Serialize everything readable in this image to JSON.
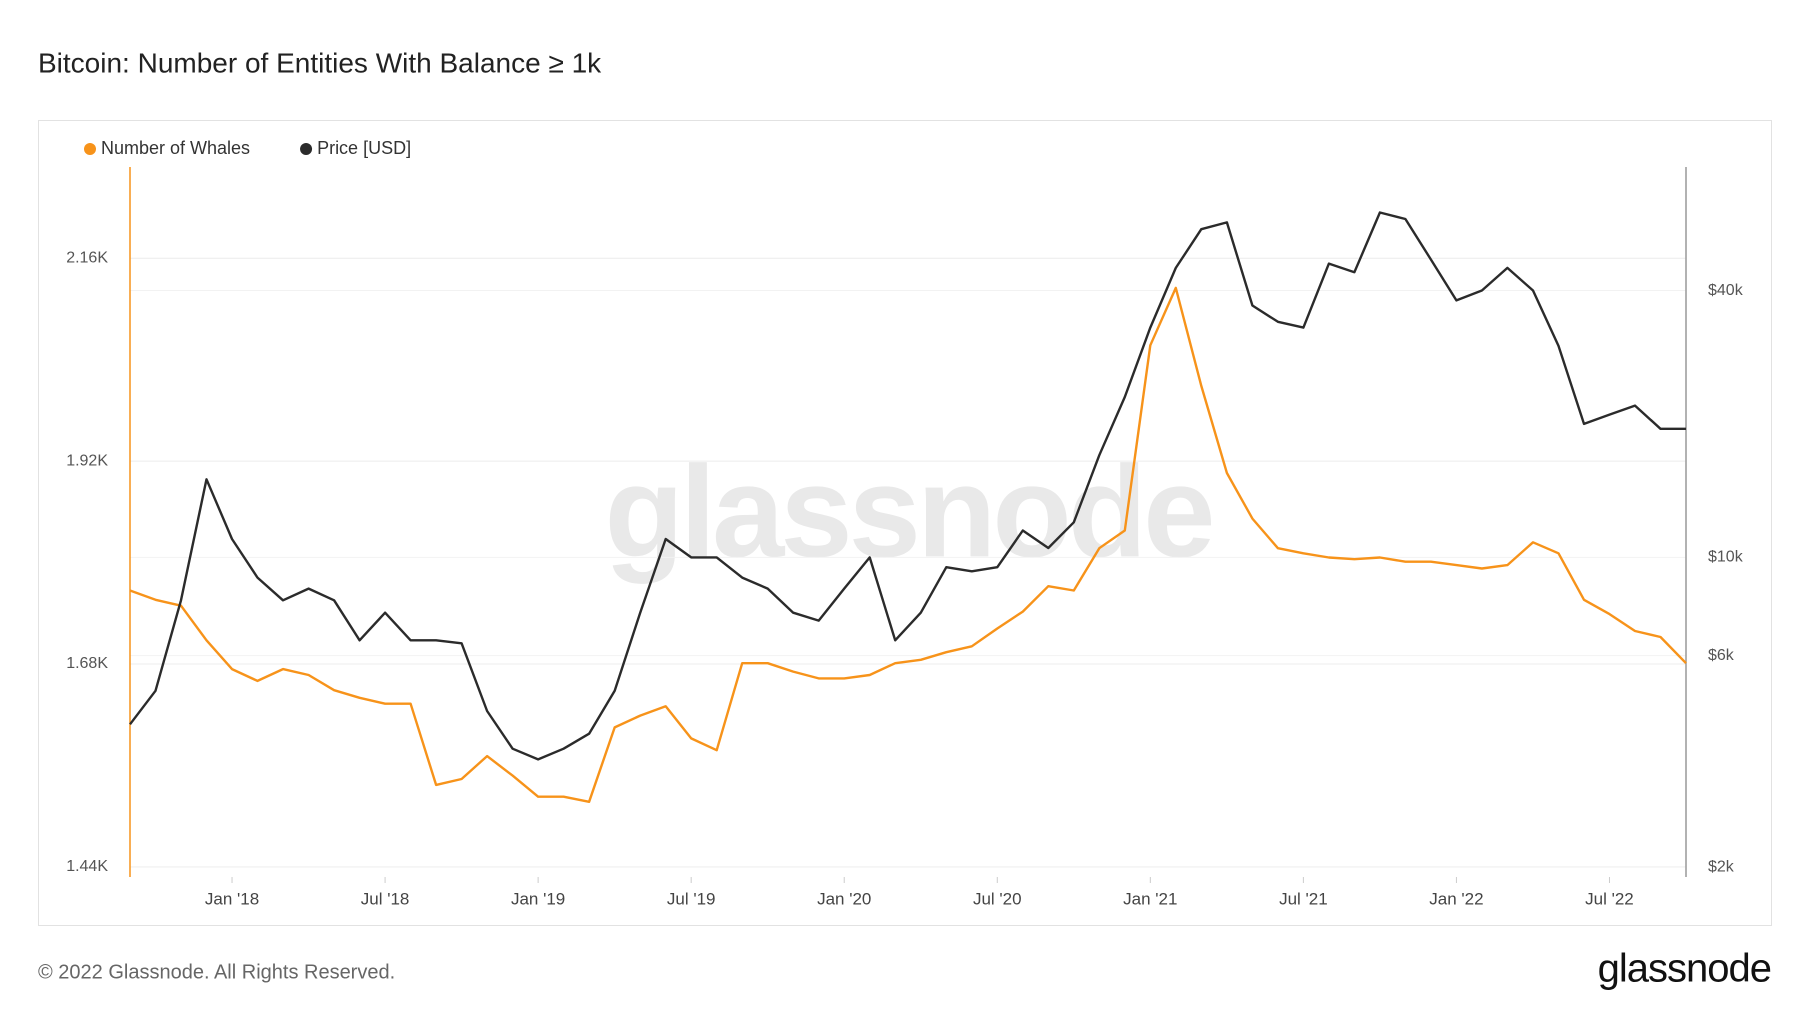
{
  "chart_data": {
    "type": "line",
    "title": "Bitcoin: Number of Entities With Balance ≥ 1k",
    "x": [
      "2017-09",
      "2017-10",
      "2017-11",
      "2017-12",
      "2018-01",
      "2018-02",
      "2018-03",
      "2018-04",
      "2018-05",
      "2018-06",
      "2018-07",
      "2018-08",
      "2018-09",
      "2018-10",
      "2018-11",
      "2018-12",
      "2019-01",
      "2019-02",
      "2019-03",
      "2019-04",
      "2019-05",
      "2019-06",
      "2019-07",
      "2019-08",
      "2019-09",
      "2019-10",
      "2019-11",
      "2019-12",
      "2020-01",
      "2020-02",
      "2020-03",
      "2020-04",
      "2020-05",
      "2020-06",
      "2020-07",
      "2020-08",
      "2020-09",
      "2020-10",
      "2020-11",
      "2020-12",
      "2021-01",
      "2021-02",
      "2021-03",
      "2021-04",
      "2021-05",
      "2021-06",
      "2021-07",
      "2021-08",
      "2021-09",
      "2021-10",
      "2021-11",
      "2021-12",
      "2022-01",
      "2022-02",
      "2022-03",
      "2022-04",
      "2022-05",
      "2022-06",
      "2022-07",
      "2022-08",
      "2022-09",
      "2022-10"
    ],
    "series": [
      {
        "name": "Number of Whales",
        "color": "#f7931a",
        "axis": "y",
        "values": [
          1767,
          1756,
          1749,
          1708,
          1674,
          1660,
          1674,
          1667,
          1649,
          1640,
          1633,
          1633,
          1537,
          1544,
          1571,
          1548,
          1523,
          1523,
          1517,
          1605,
          1619,
          1630,
          1592,
          1578,
          1681,
          1681,
          1671,
          1663,
          1663,
          1667,
          1681,
          1685,
          1694,
          1701,
          1722,
          1742,
          1772,
          1767,
          1817,
          1838,
          2057,
          2125,
          2009,
          1906,
          1852,
          1817,
          1811,
          1806,
          1804,
          1806,
          1801,
          1801,
          1797,
          1793,
          1797,
          1824,
          1811,
          1756,
          1739,
          1719,
          1712,
          1681
        ]
      },
      {
        "name": "Price [USD]",
        "color": "#2b2b2b",
        "axis": "y2",
        "values": [
          4200,
          5000,
          8000,
          15000,
          11000,
          9000,
          8000,
          8500,
          8000,
          6500,
          7500,
          6500,
          6500,
          6400,
          4500,
          3700,
          3500,
          3700,
          4000,
          5000,
          7500,
          11000,
          10000,
          10000,
          9000,
          8500,
          7500,
          7200,
          8500,
          10000,
          6500,
          7500,
          9500,
          9300,
          9500,
          11500,
          10500,
          12000,
          17000,
          23000,
          33000,
          45000,
          55000,
          57000,
          37000,
          34000,
          33000,
          46000,
          44000,
          60000,
          58000,
          47000,
          38000,
          40000,
          45000,
          40000,
          30000,
          20000,
          21000,
          22000,
          19500,
          19500
        ]
      }
    ],
    "xlim": [
      "2017-09",
      "2022-10"
    ],
    "xticks": [
      {
        "value": "2018-01",
        "label": "Jan '18"
      },
      {
        "value": "2018-07",
        "label": "Jul '18"
      },
      {
        "value": "2019-01",
        "label": "Jan '19"
      },
      {
        "value": "2019-07",
        "label": "Jul '19"
      },
      {
        "value": "2020-01",
        "label": "Jan '20"
      },
      {
        "value": "2020-07",
        "label": "Jul '20"
      },
      {
        "value": "2021-01",
        "label": "Jan '21"
      },
      {
        "value": "2021-07",
        "label": "Jul '21"
      },
      {
        "value": "2022-01",
        "label": "Jan '22"
      },
      {
        "value": "2022-07",
        "label": "Jul '22"
      }
    ],
    "ylim": [
      1428,
      2268
    ],
    "yticks": [
      {
        "value": 1440,
        "label": "1.44K"
      },
      {
        "value": 1680,
        "label": "1.68K"
      },
      {
        "value": 1920,
        "label": "1.92K"
      },
      {
        "value": 2160,
        "label": "2.16K"
      }
    ],
    "y2lim": [
      1900,
      76000
    ],
    "y2_log": true,
    "y2ticks": [
      {
        "value": 2000,
        "label": "$2k"
      },
      {
        "value": 6000,
        "label": "$6k"
      },
      {
        "value": 10000,
        "label": "$10k"
      },
      {
        "value": 40000,
        "label": "$40k"
      }
    ],
    "grid": true,
    "legend": "top-left"
  },
  "watermark": "glassnode",
  "footer": "© 2022 Glassnode. All Rights Reserved.",
  "logo": "glassnode"
}
